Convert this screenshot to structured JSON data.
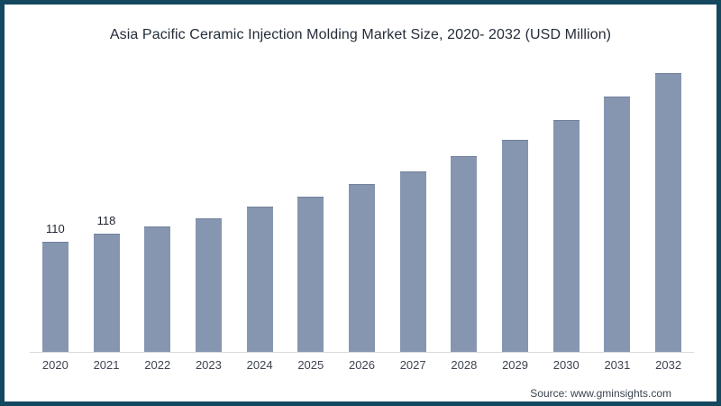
{
  "frame": {
    "border_color": "#13485e",
    "background": "#ffffff"
  },
  "title": "Asia Pacific Ceramic Injection Molding Market Size, 2020- 2032 (USD Million)",
  "source": "Source: www.gminsights.com",
  "chart_data": {
    "type": "bar",
    "title": "Asia Pacific Ceramic Injection Molding Market Size, 2020- 2032 (USD Million)",
    "categories": [
      "2020",
      "2021",
      "2022",
      "2023",
      "2024",
      "2025",
      "2026",
      "2027",
      "2028",
      "2029",
      "2030",
      "2031",
      "2032"
    ],
    "values": [
      110,
      118,
      125,
      134,
      145,
      155,
      168,
      181,
      196,
      213,
      233,
      256,
      280
    ],
    "data_labels": [
      "110",
      "118",
      "",
      "",
      "",
      "",
      "",
      "",
      "",
      "",
      "",
      "",
      ""
    ],
    "xlabel": "",
    "ylabel": "",
    "ylim": [
      0,
      300
    ],
    "grid": false,
    "legend": "none",
    "bar_color": "#8696b0",
    "axis_line_color": "#d9d9d9",
    "value_label_color": "#1d2430",
    "tick_label_color": "#3d4450"
  }
}
